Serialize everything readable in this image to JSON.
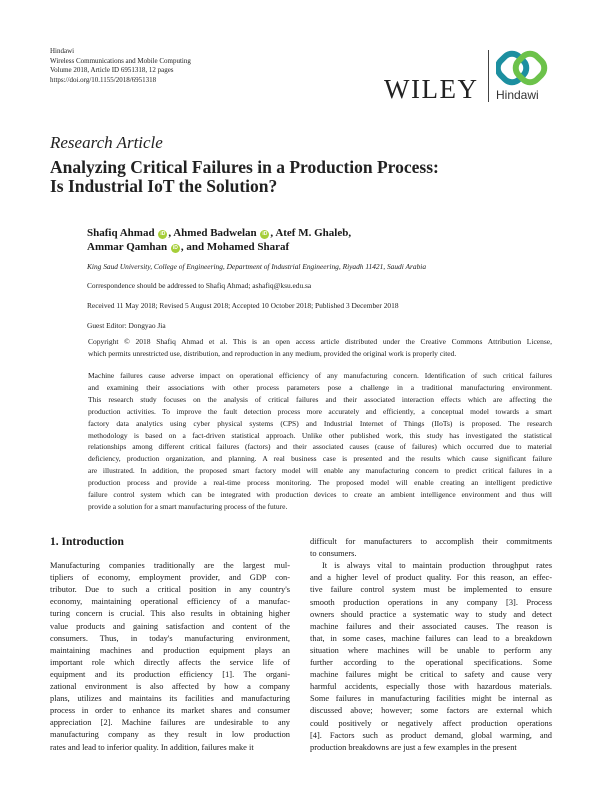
{
  "header": {
    "publisher": "Hindawi",
    "journal": "Wireless Communications and Mobile Computing",
    "volume": "Volume 2018, Article ID 6951318, 12 pages",
    "doi": "https://doi.org/10.1155/2018/6951318",
    "logo_wiley": "WILEY",
    "logo_hindawi": "Hindawi",
    "colors": {
      "hindawi_teal": "#1c8fa0",
      "hindawi_green": "#6cc24a",
      "orcid_green": "#a6ce39"
    }
  },
  "article": {
    "type": "Research Article",
    "title_line1": "Analyzing Critical Failures in a Production Process:",
    "title_line2": "Is Industrial IoT the Solution?",
    "authors": [
      {
        "name": "Shafiq Ahmad",
        "orcid": true
      },
      {
        "name": "Ahmed Badwelan",
        "orcid": true
      },
      {
        "name": "Atef M. Ghaleb",
        "orcid": false
      },
      {
        "name": "Ammar Qamhan",
        "orcid": true
      },
      {
        "name": "Mohamed Sharaf",
        "orcid": false
      }
    ],
    "sep_comma": ", ",
    "sep_and": ", and ",
    "affiliation": "King Saud University, College of Engineering, Department of Industrial Engineering, Riyadh 11421, Saudi Arabia",
    "correspondence": "Correspondence should be addressed to Shafiq Ahmad; ashafiq@ksu.edu.sa",
    "dates": "Received 11 May 2018; Revised 5 August 2018; Accepted 10 October 2018; Published 3 December 2018",
    "guest_editor": "Guest Editor: Dongyao Jia",
    "copyright_lines": [
      "Copyright © 2018 Shafiq Ahmad et al. This is an open access article distributed under the Creative Commons Attribution License,",
      "which permits unrestricted use, distribution, and reproduction in any medium, provided the original work is properly cited."
    ],
    "abstract_lines": [
      "Machine failures cause adverse impact on operational efficiency of any manufacturing concern. Identification of such critical failures",
      "and examining their associations with other process parameters pose a challenge in a traditional manufacturing environment.",
      "This research study focuses on the analysis of critical failures and their associated interaction effects which are affecting the",
      "production activities. To improve the fault detection process more accurately and efficiently, a conceptual model towards a smart",
      "factory data analytics using cyber physical systems (CPS) and Industrial Internet of Things (IIoTs) is proposed. The research",
      "methodology is based on a fact-driven statistical approach. Unlike other published work, this study has investigated the statistical",
      "relationships among different critical failures (factors) and their associated causes (cause of failures) which occurred due to material",
      "deficiency, production organization, and planning. A real business case is presented and the results which cause significant failure",
      "are illustrated. In addition, the proposed smart factory model will enable any manufacturing concern to predict critical failures in a",
      "production process and provide a real-time process monitoring. The proposed model will enable creating an intelligent predictive",
      "failure control system which can be integrated with production devices to create an ambient intelligence environment and thus will",
      "provide a solution for a smart manufacturing process of the future."
    ]
  },
  "intro": {
    "heading": "1. Introduction",
    "left_lines": [
      "Manufacturing companies traditionally are the largest mul-",
      "tipliers of economy, employment provider, and GDP con-",
      "tributor. Due to such a critical position in any country's",
      "economy, maintaining operational efficiency of a manufac-",
      "turing concern is crucial. This also results in obtaining higher",
      "value products and gaining satisfaction and content of the",
      "consumers. Thus, in today's manufacturing environment,",
      "maintaining machines and production equipment plays an",
      "important role which directly affects the service life of",
      "equipment and its production efficiency [1]. The organi-",
      "zational environment is also affected by how a company",
      "plans, utilizes and maintains its facilities and manufacturing",
      "process in order to enhance its market shares and consumer",
      "appreciation [2]. Machine failures are undesirable to any",
      "manufacturing company as they result in low production",
      "rates and lead to inferior quality. In addition, failures make it"
    ],
    "right_lines": [
      "difficult for manufacturers to accomplish their commitments",
      "to consumers.",
      "It is always vital to maintain production throughput rates",
      "and a higher level of product quality. For this reason, an effec-",
      "tive failure control system must be implemented to ensure",
      "smooth production operations in any company [3]. Process",
      "owners should practice a systematic way to study and detect",
      "machine failures and their associated causes. The reason is",
      "that, in some cases, machine failures can lead to a breakdown",
      "situation where machines will be unable to perform any",
      "further according to the operational specifications. Some",
      "machine failures might be critical to safety and cause very",
      "harmful accidents, especially those with hazardous materials.",
      "Some failures in manufacturing facilities might be internal as",
      "discussed above; however; some factors are external which",
      "could positively or negatively affect production operations",
      "[4]. Factors such as product demand, global warming, and",
      "production breakdowns are just a few examples in the present"
    ]
  }
}
